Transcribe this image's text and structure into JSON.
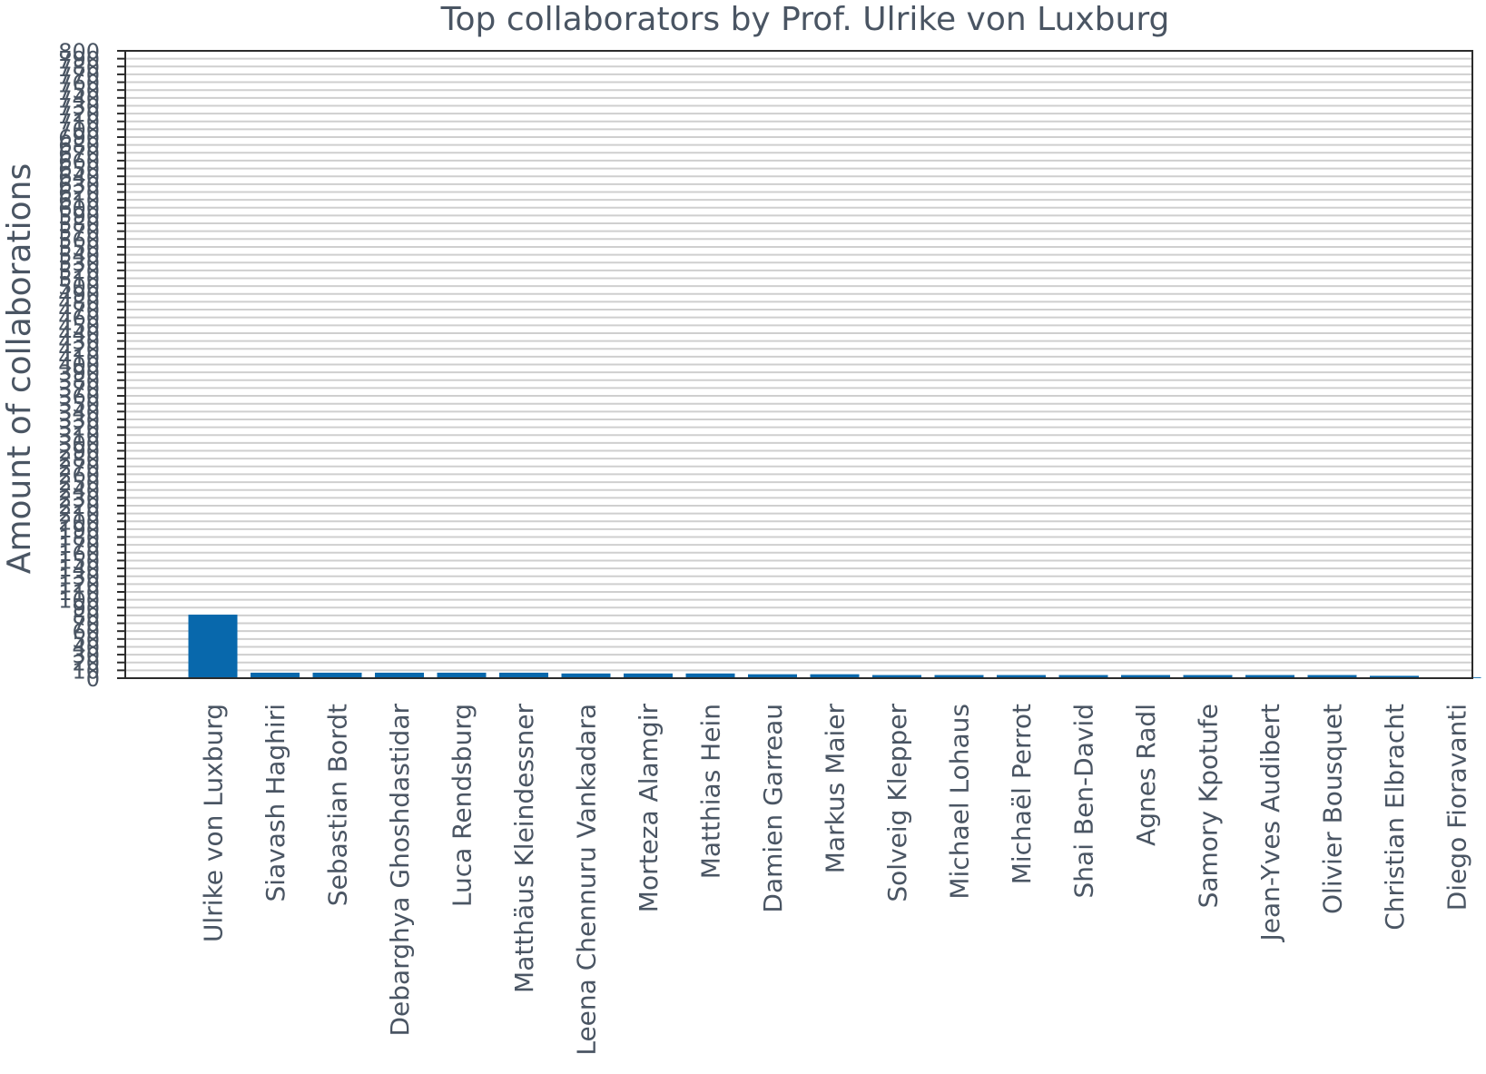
{
  "chart_data": {
    "type": "bar",
    "title": "Top collaborators by Prof. Ulrike von Luxburg",
    "xlabel": "",
    "ylabel": "Amount of collaborations",
    "ylim": [
      0,
      800
    ],
    "ytick_step": 10,
    "ytick_labels": [
      "0",
      "10",
      "20",
      "30",
      "40",
      "50",
      "60",
      "70",
      "80",
      "90",
      "100",
      "110",
      "120",
      "130",
      "140",
      "150",
      "160",
      "170",
      "180",
      "190",
      "200",
      "210",
      "220",
      "230",
      "240",
      "250",
      "260",
      "270",
      "280",
      "290",
      "300",
      "310",
      "320",
      "330",
      "340",
      "350",
      "360",
      "370",
      "380",
      "390",
      "400",
      "410",
      "420",
      "430",
      "440",
      "450",
      "460",
      "470",
      "480",
      "490",
      "500",
      "510",
      "520",
      "530",
      "540",
      "550",
      "560",
      "570",
      "580",
      "590",
      "600",
      "610",
      "620",
      "630",
      "640",
      "650",
      "660",
      "670",
      "680",
      "690",
      "700",
      "710",
      "720",
      "730",
      "740",
      "750",
      "760",
      "770",
      "780",
      "790",
      "800"
    ],
    "grid": true,
    "legend": "none",
    "bar_color": "#0868ac",
    "categories": [
      "Ulrike von Luxburg",
      "Siavash Haghiri",
      "Sebastian Bordt",
      "Debarghya Ghoshdastidar",
      "Luca Rendsburg",
      "Matthäus Kleindessner",
      "Leena Chennuru Vankadara",
      "Morteza Alamgir",
      "Matthias Hein",
      "Damien Garreau",
      "Markus Maier",
      "Solveig Klepper",
      "Michael Lohaus",
      "Michaël Perrot",
      "Shai Ben-David",
      "Agnes Radl",
      "Samory Kpotufe",
      "Jean-Yves Audibert",
      "Olivier Bousquet",
      "Christian Elbracht",
      "Diego Fioravanti"
    ],
    "values": [
      81,
      7,
      7,
      7,
      7,
      7,
      6,
      6,
      6,
      5,
      5,
      4,
      4,
      4,
      4,
      4,
      4,
      4,
      4,
      3,
      1
    ]
  }
}
